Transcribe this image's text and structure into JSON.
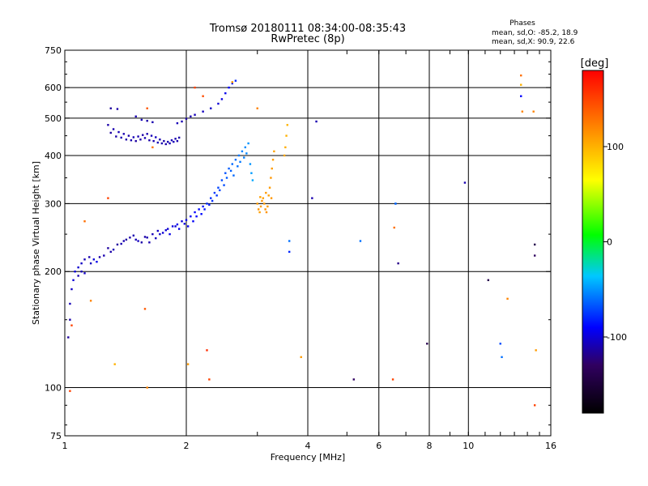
{
  "header": {
    "title_line1": "Tromsø 20180111 08:34:00-08:35:43",
    "title_line2": "RwPretec (8p)",
    "stats_title": "Phases",
    "stats_o": "mean, sd,O: -85.2, 18.9",
    "stats_x": "mean, sd,X:  90.9, 22.6"
  },
  "chart_data": {
    "type": "scatter",
    "xlabel": "Frequency [MHz]",
    "ylabel": "Stationary phase Virtual Height [km]",
    "x_scale": "log",
    "y_scale": "log",
    "xlim": [
      1,
      16
    ],
    "ylim": [
      75,
      750
    ],
    "grid": true,
    "x_major_ticks": [
      1,
      2,
      4,
      8,
      16
    ],
    "x_minor_ticks": [
      6,
      10
    ],
    "x_tick_labels": [
      "1",
      "2",
      "4",
      "6",
      "8",
      "10",
      "16"
    ],
    "y_ticks": [
      75,
      100,
      200,
      300,
      400,
      500,
      600,
      750
    ],
    "y_tick_labels": [
      "75",
      "100",
      "200",
      "300",
      "400",
      "500",
      "600",
      "750"
    ],
    "colorbar": {
      "label": "[deg]",
      "range": [
        -180,
        180
      ],
      "ticks": [
        100,
        0,
        -100
      ],
      "tick_labels": [
        "100",
        "0",
        "-100"
      ],
      "colors": [
        "#000000",
        "#300060",
        "#0000ff",
        "#00c8ff",
        "#00ff00",
        "#ffff00",
        "#ff8000",
        "#ff0000"
      ]
    },
    "series": [
      {
        "points": [
          [
            1.02,
            135,
            -115
          ],
          [
            1.03,
            150,
            -112
          ],
          [
            1.03,
            165,
            -108
          ],
          [
            1.04,
            180,
            -105
          ],
          [
            1.05,
            190,
            -100
          ],
          [
            1.06,
            200,
            -98
          ],
          [
            1.08,
            205,
            -102
          ],
          [
            1.1,
            210,
            -105
          ],
          [
            1.12,
            215,
            -108
          ],
          [
            1.15,
            218,
            -110
          ],
          [
            1.18,
            215,
            -100
          ],
          [
            1.2,
            212,
            -95
          ],
          [
            1.25,
            220,
            -110
          ],
          [
            1.3,
            225,
            -112
          ],
          [
            1.35,
            235,
            -115
          ],
          [
            1.4,
            240,
            -110
          ],
          [
            1.45,
            245,
            -112
          ],
          [
            1.5,
            242,
            -108
          ],
          [
            1.55,
            238,
            -112
          ],
          [
            1.6,
            245,
            -110
          ],
          [
            1.65,
            250,
            -108
          ],
          [
            1.7,
            255,
            -105
          ],
          [
            1.75,
            252,
            -100
          ],
          [
            1.8,
            258,
            -102
          ],
          [
            1.85,
            262,
            -98
          ],
          [
            1.9,
            265,
            -95
          ],
          [
            1.95,
            270,
            -100
          ],
          [
            2.0,
            272,
            -95
          ],
          [
            2.05,
            278,
            -92
          ],
          [
            2.1,
            285,
            -90
          ],
          [
            2.15,
            290,
            -88
          ],
          [
            2.2,
            295,
            -85
          ],
          [
            2.25,
            300,
            -80
          ],
          [
            2.3,
            310,
            -78
          ],
          [
            2.35,
            320,
            -75
          ],
          [
            2.4,
            330,
            -72
          ],
          [
            2.45,
            345,
            -70
          ],
          [
            2.5,
            360,
            -68
          ],
          [
            2.55,
            370,
            -65
          ],
          [
            2.6,
            380,
            -62
          ],
          [
            2.65,
            390,
            -60
          ],
          [
            2.7,
            400,
            -58
          ],
          [
            2.75,
            410,
            -55
          ],
          [
            2.8,
            420,
            -52
          ],
          [
            2.85,
            430,
            -50
          ],
          [
            1.08,
            195,
            -110
          ],
          [
            1.1,
            200,
            -108
          ],
          [
            1.12,
            198,
            -104
          ],
          [
            1.16,
            210,
            -106
          ],
          [
            1.22,
            218,
            -112
          ],
          [
            1.28,
            230,
            -114
          ],
          [
            1.32,
            228,
            -108
          ],
          [
            1.38,
            236,
            -110
          ],
          [
            1.42,
            242,
            -114
          ],
          [
            1.48,
            248,
            -110
          ],
          [
            1.52,
            240,
            -106
          ],
          [
            1.58,
            246,
            -112
          ],
          [
            1.62,
            238,
            -110
          ],
          [
            1.68,
            244,
            -106
          ],
          [
            1.72,
            250,
            -104
          ],
          [
            1.78,
            256,
            -100
          ],
          [
            1.82,
            250,
            -96
          ],
          [
            1.88,
            262,
            -100
          ],
          [
            1.92,
            258,
            -96
          ],
          [
            1.98,
            266,
            -98
          ],
          [
            2.02,
            262,
            -94
          ],
          [
            2.08,
            270,
            -92
          ],
          [
            2.12,
            278,
            -90
          ],
          [
            2.18,
            282,
            -88
          ],
          [
            2.22,
            290,
            -84
          ],
          [
            2.28,
            298,
            -82
          ],
          [
            2.32,
            305,
            -78
          ],
          [
            2.38,
            315,
            -76
          ],
          [
            2.42,
            325,
            -72
          ],
          [
            2.48,
            335,
            -70
          ],
          [
            2.52,
            350,
            -66
          ],
          [
            2.58,
            365,
            -64
          ],
          [
            2.62,
            355,
            -62
          ],
          [
            2.68,
            375,
            -60
          ],
          [
            2.72,
            385,
            -58
          ],
          [
            2.78,
            395,
            -56
          ],
          [
            2.82,
            405,
            -54
          ],
          [
            2.88,
            380,
            -50
          ],
          [
            2.9,
            360,
            -48
          ],
          [
            2.92,
            345,
            -45
          ],
          [
            1.28,
            480,
            -112
          ],
          [
            1.32,
            468,
            -110
          ],
          [
            1.36,
            460,
            -108
          ],
          [
            1.4,
            455,
            -110
          ],
          [
            1.44,
            450,
            -112
          ],
          [
            1.48,
            446,
            -108
          ],
          [
            1.52,
            448,
            -110
          ],
          [
            1.56,
            452,
            -112
          ],
          [
            1.6,
            455,
            -110
          ],
          [
            1.64,
            450,
            -108
          ],
          [
            1.68,
            446,
            -106
          ],
          [
            1.72,
            440,
            -110
          ],
          [
            1.76,
            436,
            -112
          ],
          [
            1.8,
            434,
            -110
          ],
          [
            1.84,
            438,
            -108
          ],
          [
            1.88,
            442,
            -110
          ],
          [
            1.92,
            445,
            -112
          ],
          [
            1.3,
            458,
            -114
          ],
          [
            1.34,
            448,
            -112
          ],
          [
            1.38,
            445,
            -110
          ],
          [
            1.42,
            440,
            -112
          ],
          [
            1.46,
            438,
            -110
          ],
          [
            1.5,
            436,
            -114
          ],
          [
            1.54,
            440,
            -112
          ],
          [
            1.58,
            444,
            -110
          ],
          [
            1.62,
            438,
            -112
          ],
          [
            1.66,
            436,
            -110
          ],
          [
            1.7,
            432,
            -108
          ],
          [
            1.74,
            430,
            -110
          ],
          [
            1.78,
            428,
            -112
          ],
          [
            1.82,
            430,
            -110
          ],
          [
            1.86,
            434,
            -108
          ],
          [
            1.9,
            436,
            -110
          ],
          [
            1.3,
            530,
            -115
          ],
          [
            1.35,
            528,
            -112
          ],
          [
            1.5,
            505,
            -110
          ],
          [
            1.55,
            495,
            -108
          ],
          [
            1.6,
            492,
            -112
          ],
          [
            1.65,
            488,
            -110
          ],
          [
            1.9,
            485,
            -108
          ],
          [
            1.95,
            490,
            -110
          ],
          [
            2.0,
            498,
            -112
          ],
          [
            2.05,
            505,
            -110
          ],
          [
            2.1,
            510,
            -108
          ],
          [
            2.2,
            520,
            -106
          ],
          [
            2.3,
            530,
            -104
          ],
          [
            2.4,
            545,
            -100
          ],
          [
            2.45,
            560,
            -98
          ],
          [
            2.5,
            580,
            -95
          ],
          [
            2.55,
            600,
            -90
          ],
          [
            2.6,
            615,
            -85
          ],
          [
            2.65,
            625,
            -80
          ],
          [
            3.0,
            300,
            110
          ],
          [
            3.02,
            290,
            112
          ],
          [
            3.04,
            285,
            108
          ],
          [
            3.06,
            295,
            110
          ],
          [
            3.08,
            305,
            112
          ],
          [
            3.1,
            310,
            108
          ],
          [
            3.12,
            300,
            110
          ],
          [
            3.14,
            290,
            112
          ],
          [
            3.16,
            285,
            114
          ],
          [
            3.18,
            295,
            110
          ],
          [
            3.2,
            315,
            108
          ],
          [
            3.22,
            330,
            110
          ],
          [
            3.24,
            350,
            112
          ],
          [
            3.26,
            370,
            110
          ],
          [
            3.28,
            390,
            108
          ],
          [
            3.3,
            410,
            106
          ],
          [
            3.25,
            310,
            112
          ],
          [
            3.15,
            320,
            110
          ],
          [
            3.05,
            312,
            108
          ],
          [
            3.5,
            400,
            105
          ],
          [
            3.52,
            420,
            102
          ],
          [
            3.54,
            450,
            100
          ],
          [
            3.56,
            480,
            98
          ],
          [
            1.04,
            145,
            150
          ],
          [
            1.12,
            270,
            130
          ],
          [
            1.16,
            168,
            120
          ],
          [
            1.28,
            310,
            150
          ],
          [
            1.33,
            115,
            100
          ],
          [
            1.58,
            160,
            140
          ],
          [
            1.6,
            530,
            140
          ],
          [
            1.65,
            420,
            130
          ],
          [
            2.02,
            115,
            110
          ],
          [
            2.1,
            600,
            150
          ],
          [
            2.2,
            570,
            145
          ],
          [
            2.25,
            125,
            160
          ],
          [
            2.28,
            105,
            150
          ],
          [
            2.6,
            620,
            110
          ],
          [
            3.0,
            530,
            120
          ],
          [
            3.85,
            120,
            110
          ],
          [
            5.2,
            105,
            -130
          ],
          [
            6.5,
            105,
            150
          ],
          [
            6.55,
            260,
            130
          ],
          [
            6.6,
            300,
            -80
          ],
          [
            6.7,
            210,
            -120
          ],
          [
            7.9,
            130,
            -140
          ],
          [
            9.8,
            340,
            -110
          ],
          [
            11.2,
            190,
            -140
          ],
          [
            12.0,
            130,
            -70
          ],
          [
            12.1,
            120,
            -60
          ],
          [
            12.5,
            170,
            120
          ],
          [
            13.5,
            570,
            -90
          ],
          [
            13.5,
            610,
            100
          ],
          [
            13.6,
            520,
            120
          ],
          [
            13.5,
            645,
            130
          ],
          [
            14.5,
            520,
            120
          ],
          [
            14.6,
            235,
            -140
          ],
          [
            14.6,
            220,
            -130
          ],
          [
            14.7,
            125,
            110
          ],
          [
            14.6,
            90,
            150
          ],
          [
            1.03,
            98,
            150
          ],
          [
            1.6,
            100,
            120
          ],
          [
            3.6,
            240,
            -60
          ],
          [
            3.6,
            225,
            -80
          ],
          [
            4.1,
            310,
            -110
          ],
          [
            4.2,
            490,
            -110
          ],
          [
            5.4,
            240,
            -60
          ],
          [
            6.6,
            300,
            -60
          ]
        ]
      }
    ]
  }
}
